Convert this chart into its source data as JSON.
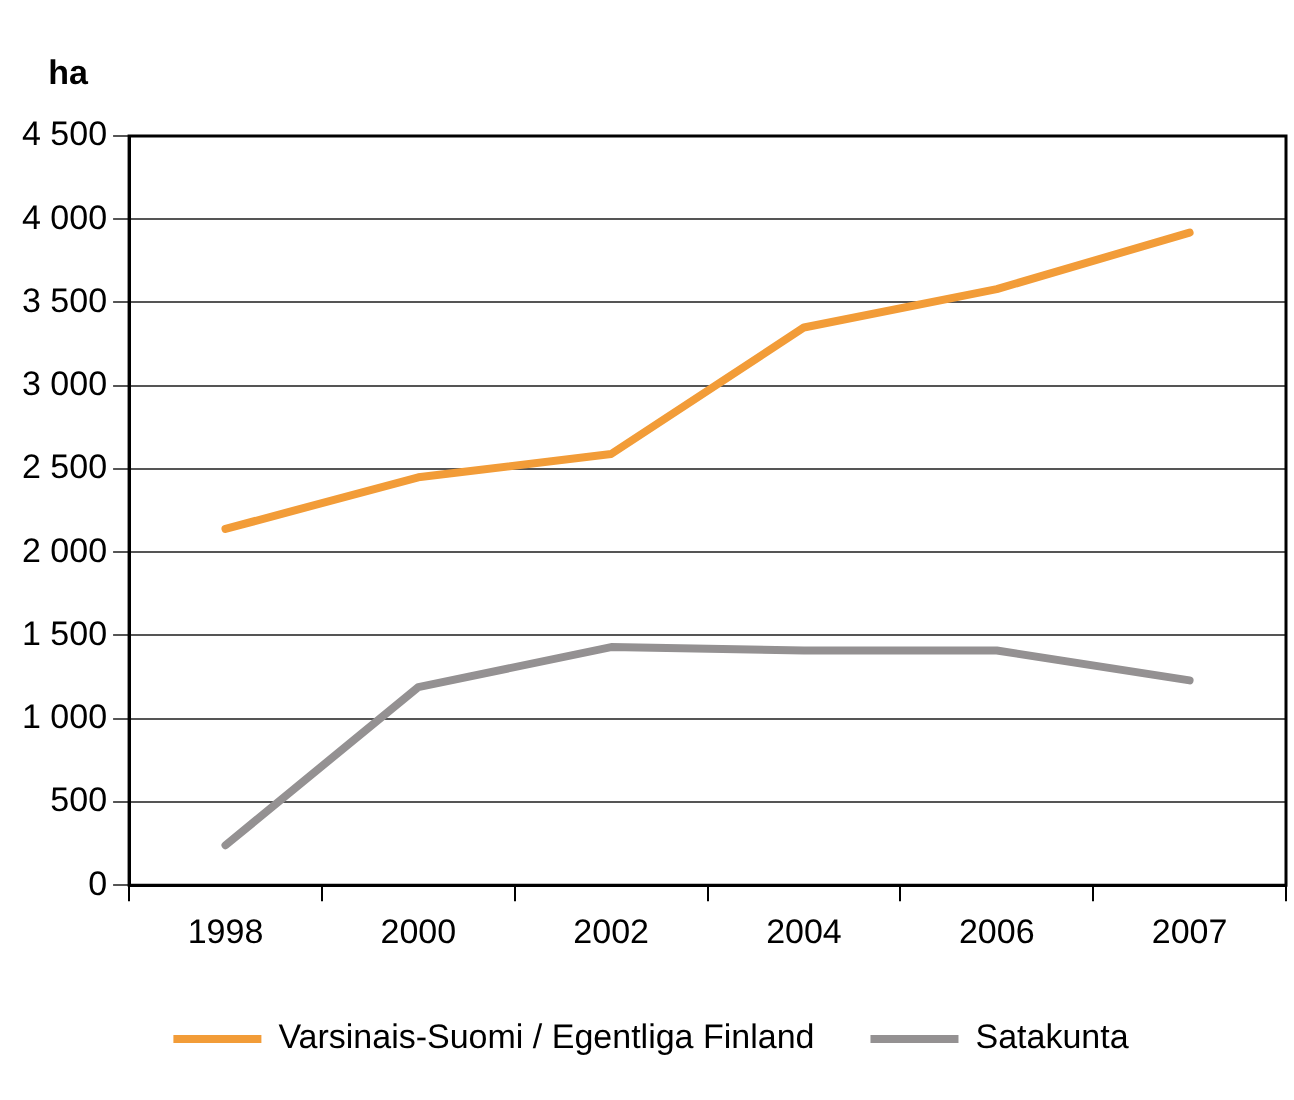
{
  "chart_data": {
    "type": "line",
    "ylabel": "ha",
    "categories": [
      "1998",
      "2000",
      "2002",
      "2004",
      "2006",
      "2007"
    ],
    "series": [
      {
        "name": "Varsinais-Suomi / Egentliga Finland",
        "color": "#f29c38",
        "values": [
          2140,
          2450,
          2590,
          3350,
          3580,
          3920
        ]
      },
      {
        "name": "Satakunta",
        "color": "#949192",
        "values": [
          240,
          1190,
          1430,
          1410,
          1410,
          1230
        ]
      }
    ],
    "ylim": [
      0,
      4500
    ],
    "yticks": [
      {
        "value": 0,
        "label": "0"
      },
      {
        "value": 500,
        "label": "500"
      },
      {
        "value": 1000,
        "label": "1 000"
      },
      {
        "value": 1500,
        "label": "1 500"
      },
      {
        "value": 2000,
        "label": "2 000"
      },
      {
        "value": 2500,
        "label": "2 500"
      },
      {
        "value": 3000,
        "label": "3 000"
      },
      {
        "value": 3500,
        "label": "3 500"
      },
      {
        "value": 4000,
        "label": "4 000"
      },
      {
        "value": 4500,
        "label": "4 500"
      }
    ],
    "grid": "y",
    "legend": "bottom",
    "marker": "none",
    "line_style": "solid"
  }
}
